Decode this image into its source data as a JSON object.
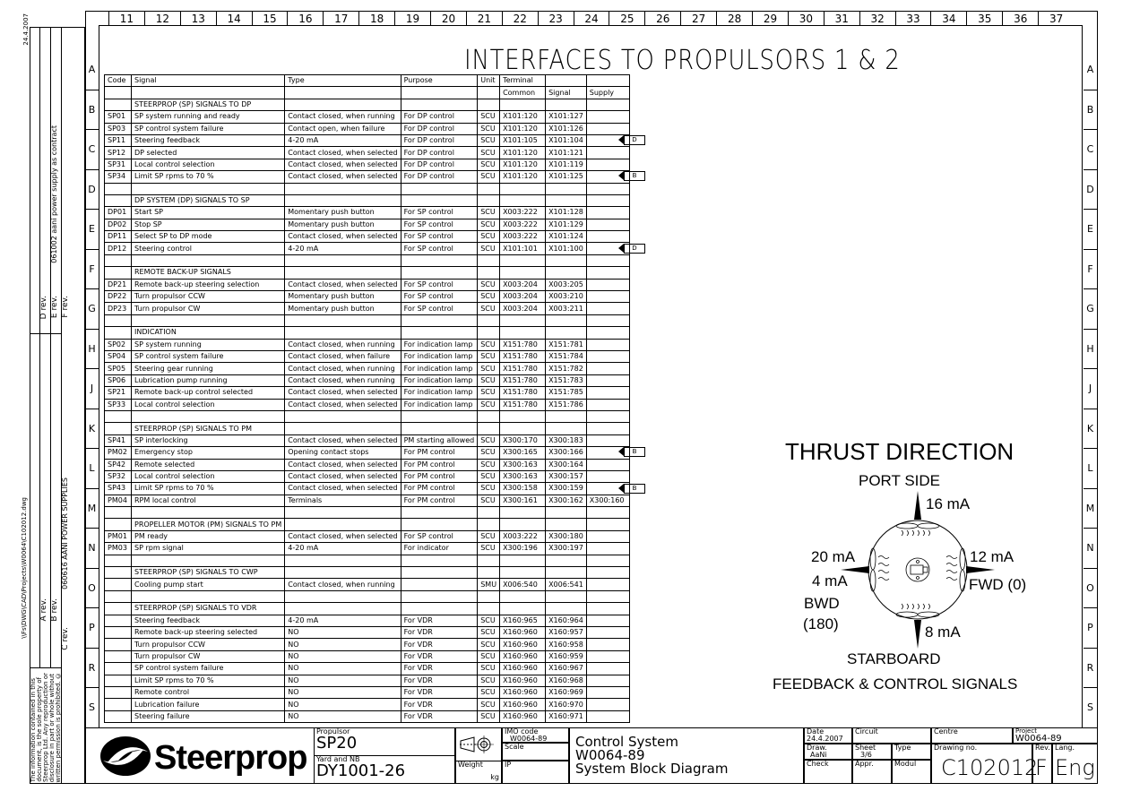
{
  "margin": {
    "date_top": "24.4.2007",
    "file_path": "\\\\Fs\\DWG\\CAD\\Projects\\W0064\\C102012.dwg",
    "copyright": [
      "The information contained in this",
      "document, is the sole property of",
      "Steerprop Ltd. Any reproduction or",
      "disclosure in part or whole without",
      "written permission is prohibited. ©"
    ],
    "revisions": {
      "a": "A rev.",
      "b": "B rev.",
      "c": "C rev.",
      "c_note": "060616  AANI POWER SUPPLIES",
      "d": "D rev.",
      "e": "E rev.",
      "e_note": "061002  aani power supply as contract",
      "f": "F rev."
    }
  },
  "column_numbers": [
    "11",
    "12",
    "13",
    "14",
    "15",
    "16",
    "17",
    "18",
    "19",
    "20",
    "21",
    "22",
    "23",
    "24",
    "25",
    "26",
    "27",
    "28",
    "29",
    "30",
    "31",
    "32",
    "33",
    "34",
    "35",
    "36",
    "37"
  ],
  "row_letters": [
    "A",
    "B",
    "C",
    "D",
    "E",
    "F",
    "G",
    "H",
    "J",
    "K",
    "L",
    "M",
    "N",
    "O",
    "P",
    "R",
    "S"
  ],
  "title": "INTERFACES TO PROPULSORS 1 & 2",
  "table": {
    "header": [
      "Code",
      "Signal",
      "Type",
      "Purpose",
      "Unit",
      "Terminal",
      "",
      ""
    ],
    "subheader": [
      "",
      "",
      "",
      "",
      "",
      "Common",
      "Signal",
      "Supply"
    ],
    "rows": [
      [
        "",
        "STEERPROP (SP) SIGNALS TO DP",
        "",
        "",
        "",
        "",
        "",
        "",
        ""
      ],
      [
        "SP01",
        "SP system running and ready",
        "Contact closed, when running",
        "For DP control",
        "SCU",
        "X101:120",
        "X101:127",
        "",
        ""
      ],
      [
        "SP03",
        "SP control system failure",
        "Contact open, when failure",
        "For DP control",
        "SCU",
        "X101:120",
        "X101:126",
        "",
        ""
      ],
      [
        "SP11",
        "Steering feedback",
        "4-20 mA",
        "For DP control",
        "SCU",
        "X101:105",
        "X101:104",
        "",
        "D"
      ],
      [
        "SP12",
        "DP selected",
        "Contact closed, when selected",
        "For DP control",
        "SCU",
        "X101:120",
        "X101:121",
        "",
        ""
      ],
      [
        "SP31",
        "Local control selection",
        "Contact closed, when selected",
        "For DP control",
        "SCU",
        "X101:120",
        "X101:119",
        "",
        ""
      ],
      [
        "SP34",
        "Limit SP rpms to 70 %",
        "Contact closed, when selected",
        "For DP control",
        "SCU",
        "X101:120",
        "X101:125",
        "",
        "B"
      ],
      [
        "",
        "",
        "",
        "",
        "",
        "",
        "",
        "",
        ""
      ],
      [
        "",
        "DP SYSTEM (DP) SIGNALS TO SP",
        "",
        "",
        "",
        "",
        "",
        "",
        ""
      ],
      [
        "DP01",
        "Start SP",
        "Momentary push button",
        "For SP control",
        "SCU",
        "X003:222",
        "X101:128",
        "",
        ""
      ],
      [
        "DP02",
        "Stop SP",
        "Momentary push button",
        "For SP control",
        "SCU",
        "X003:222",
        "X101:129",
        "",
        ""
      ],
      [
        "DP11",
        "Select SP to DP mode",
        "Contact closed, when selected",
        "For SP control",
        "SCU",
        "X003:222",
        "X101:124",
        "",
        ""
      ],
      [
        "DP12",
        "Steering control",
        "4-20 mA",
        "For SP control",
        "SCU",
        "X101:101",
        "X101:100",
        "",
        "D"
      ],
      [
        "",
        "",
        "",
        "",
        "",
        "",
        "",
        "",
        ""
      ],
      [
        "",
        "REMOTE BACK-UP SIGNALS",
        "",
        "",
        "",
        "",
        "",
        "",
        ""
      ],
      [
        "DP21",
        "Remote back-up steering selection",
        "Contact closed, when selected",
        "For SP control",
        "SCU",
        "X003:204",
        "X003:205",
        "",
        ""
      ],
      [
        "DP22",
        "Turn propulsor CCW",
        "Momentary push button",
        "For SP control",
        "SCU",
        "X003:204",
        "X003:210",
        "",
        ""
      ],
      [
        "DP23",
        "Turn propulsor CW",
        "Momentary push button",
        "For SP control",
        "SCU",
        "X003:204",
        "X003:211",
        "",
        ""
      ],
      [
        "",
        "",
        "",
        "",
        "",
        "",
        "",
        "",
        ""
      ],
      [
        "",
        "INDICATION",
        "",
        "",
        "",
        "",
        "",
        "",
        ""
      ],
      [
        "SP02",
        "SP system running",
        "Contact closed, when running",
        "For indication lamp",
        "SCU",
        "X151:780",
        "X151:781",
        "",
        ""
      ],
      [
        "SP04",
        "SP control system failure",
        "Contact closed, when failure",
        "For indication lamp",
        "SCU",
        "X151:780",
        "X151:784",
        "",
        ""
      ],
      [
        "SP05",
        "Steering gear running",
        "Contact closed, when running",
        "For indication lamp",
        "SCU",
        "X151:780",
        "X151:782",
        "",
        ""
      ],
      [
        "SP06",
        "Lubrication pump running",
        "Contact closed, when running",
        "For indication lamp",
        "SCU",
        "X151:780",
        "X151:783",
        "",
        ""
      ],
      [
        "SP21",
        "Remote back-up control selected",
        "Contact closed, when selected",
        "For indication lamp",
        "SCU",
        "X151:780",
        "X151:785",
        "",
        ""
      ],
      [
        "SP33",
        "Local control selection",
        "Contact closed, when selected",
        "For indication lamp",
        "SCU",
        "X151:780",
        "X151:786",
        "",
        ""
      ],
      [
        "",
        "",
        "",
        "",
        "",
        "",
        "",
        "",
        ""
      ],
      [
        "",
        "STEERPROP (SP) SIGNALS TO PM",
        "",
        "",
        "",
        "",
        "",
        "",
        ""
      ],
      [
        "SP41",
        "SP interlocking",
        "Contact closed, when selected",
        "PM starting allowed",
        "SCU",
        "X300:170",
        "X300:183",
        "",
        ""
      ],
      [
        "PM02",
        "Emergency stop",
        "Opening contact stops",
        "For PM control",
        "SCU",
        "X300:165",
        "X300:166",
        "",
        "B"
      ],
      [
        "SP42",
        "Remote selected",
        "Contact closed, when selected",
        "For PM control",
        "SCU",
        "X300:163",
        "X300:164",
        "",
        ""
      ],
      [
        "SP32",
        "Local control selection",
        "Contact closed, when selected",
        "For PM control",
        "SCU",
        "X300:163",
        "X300:157",
        "",
        ""
      ],
      [
        "SP43",
        "Limit SP rpms to 70 %",
        "Contact closed, when selected",
        "For PM control",
        "SCU",
        "X300:158",
        "X300:159",
        "",
        "B"
      ],
      [
        "PM04",
        "RPM local control",
        "Terminals",
        "For PM control",
        "SCU",
        "X300:161",
        "X300:162",
        "X300:160",
        ""
      ],
      [
        "",
        "",
        "",
        "",
        "",
        "",
        "",
        "",
        ""
      ],
      [
        "",
        "PROPELLER MOTOR (PM) SIGNALS TO PM",
        "",
        "",
        "",
        "",
        "",
        "",
        ""
      ],
      [
        "PM01",
        "PM ready",
        "Contact closed, when selected",
        "For SP control",
        "SCU",
        "X003:222",
        "X300:180",
        "",
        ""
      ],
      [
        "PM03",
        "SP rpm signal",
        "4-20 mA",
        "For indicator",
        "SCU",
        "X300:196",
        "X300:197",
        "",
        ""
      ],
      [
        "",
        "",
        "",
        "",
        "",
        "",
        "",
        "",
        ""
      ],
      [
        "",
        "STEERPROP (SP) SIGNALS TO CWP",
        "",
        "",
        "",
        "",
        "",
        "",
        ""
      ],
      [
        "",
        "Cooling pump start",
        "Contact closed, when running",
        "",
        "SMU",
        "X006:540",
        "X006:541",
        "",
        ""
      ],
      [
        "",
        "",
        "",
        "",
        "",
        "",
        "",
        "",
        ""
      ],
      [
        "",
        "STEERPROP (SP) SIGNALS TO VDR",
        "",
        "",
        "",
        "",
        "",
        "",
        ""
      ],
      [
        "",
        "Steering feedback",
        "4-20 mA",
        "For VDR",
        "SCU",
        "X160:965",
        "X160:964",
        "",
        ""
      ],
      [
        "",
        "Remote back-up steering selected",
        "NO",
        "For VDR",
        "SCU",
        "X160:960",
        "X160:957",
        "",
        ""
      ],
      [
        "",
        "Turn propulsor CCW",
        "NO",
        "For VDR",
        "SCU",
        "X160:960",
        "X160:958",
        "",
        ""
      ],
      [
        "",
        "Turn propulsor CW",
        "NO",
        "For VDR",
        "SCU",
        "X160:960",
        "X160:959",
        "",
        ""
      ],
      [
        "",
        "SP control system failure",
        "NO",
        "For VDR",
        "SCU",
        "X160:960",
        "X160:967",
        "",
        ""
      ],
      [
        "",
        "Limit SP rpms to 70 %",
        "NO",
        "For VDR",
        "SCU",
        "X160:960",
        "X160:968",
        "",
        ""
      ],
      [
        "",
        "Remote control",
        "NO",
        "For VDR",
        "SCU",
        "X160:960",
        "X160:969",
        "",
        ""
      ],
      [
        "",
        "Lubrication failure",
        "NO",
        "For VDR",
        "SCU",
        "X160:960",
        "X160:970",
        "",
        ""
      ],
      [
        "",
        "Steering failure",
        "NO",
        "For VDR",
        "SCU",
        "X160:960",
        "X160:971",
        "",
        ""
      ]
    ]
  },
  "thrust": {
    "title": "THRUST DIRECTION",
    "port": "PORT SIDE",
    "top_ma": "16 mA",
    "left_ma": "20 mA",
    "left_ma2": "4 mA",
    "bwd": "BWD",
    "bwd_deg": "(180)",
    "right_ma": "12 mA",
    "fwd": "FWD (0)",
    "bottom_ma": "8 mA",
    "starboard": "STARBOARD",
    "caption": "FEEDBACK & CONTROL SIGNALS"
  },
  "titleblock": {
    "logo": "Steerprop",
    "propulsor_label": "Propulsor",
    "propulsor": "SP20",
    "yard_label": "Yard and NB",
    "yard": "DY1001-26",
    "weight_label": "Weight",
    "weight_unit": "kg",
    "imo_label": "IMO code",
    "imo": "W0064-89",
    "scale_label": "Scale",
    "ip_label": "IP",
    "desc1": "Control System",
    "desc2": "W0064-89",
    "desc3": "System Block Diagram",
    "date_label": "Date",
    "date": "24.4.2007",
    "draw_label": "Draw.",
    "draw": "AaNi",
    "check_label": "Check",
    "circuit_label": "Circuit",
    "sheet_label": "Sheet",
    "sheet": "3/6",
    "type_label": "Type",
    "appr_label": "Appr.",
    "modul_label": "Modul",
    "centre_label": "Centre",
    "drawing_no_label": "Drawing no.",
    "drawing_no": "C102012",
    "project_label": "Project",
    "project": "W0064-89",
    "rev_label": "Rev.",
    "rev": "F",
    "lang_label": "Lang.",
    "lang": "Eng"
  }
}
